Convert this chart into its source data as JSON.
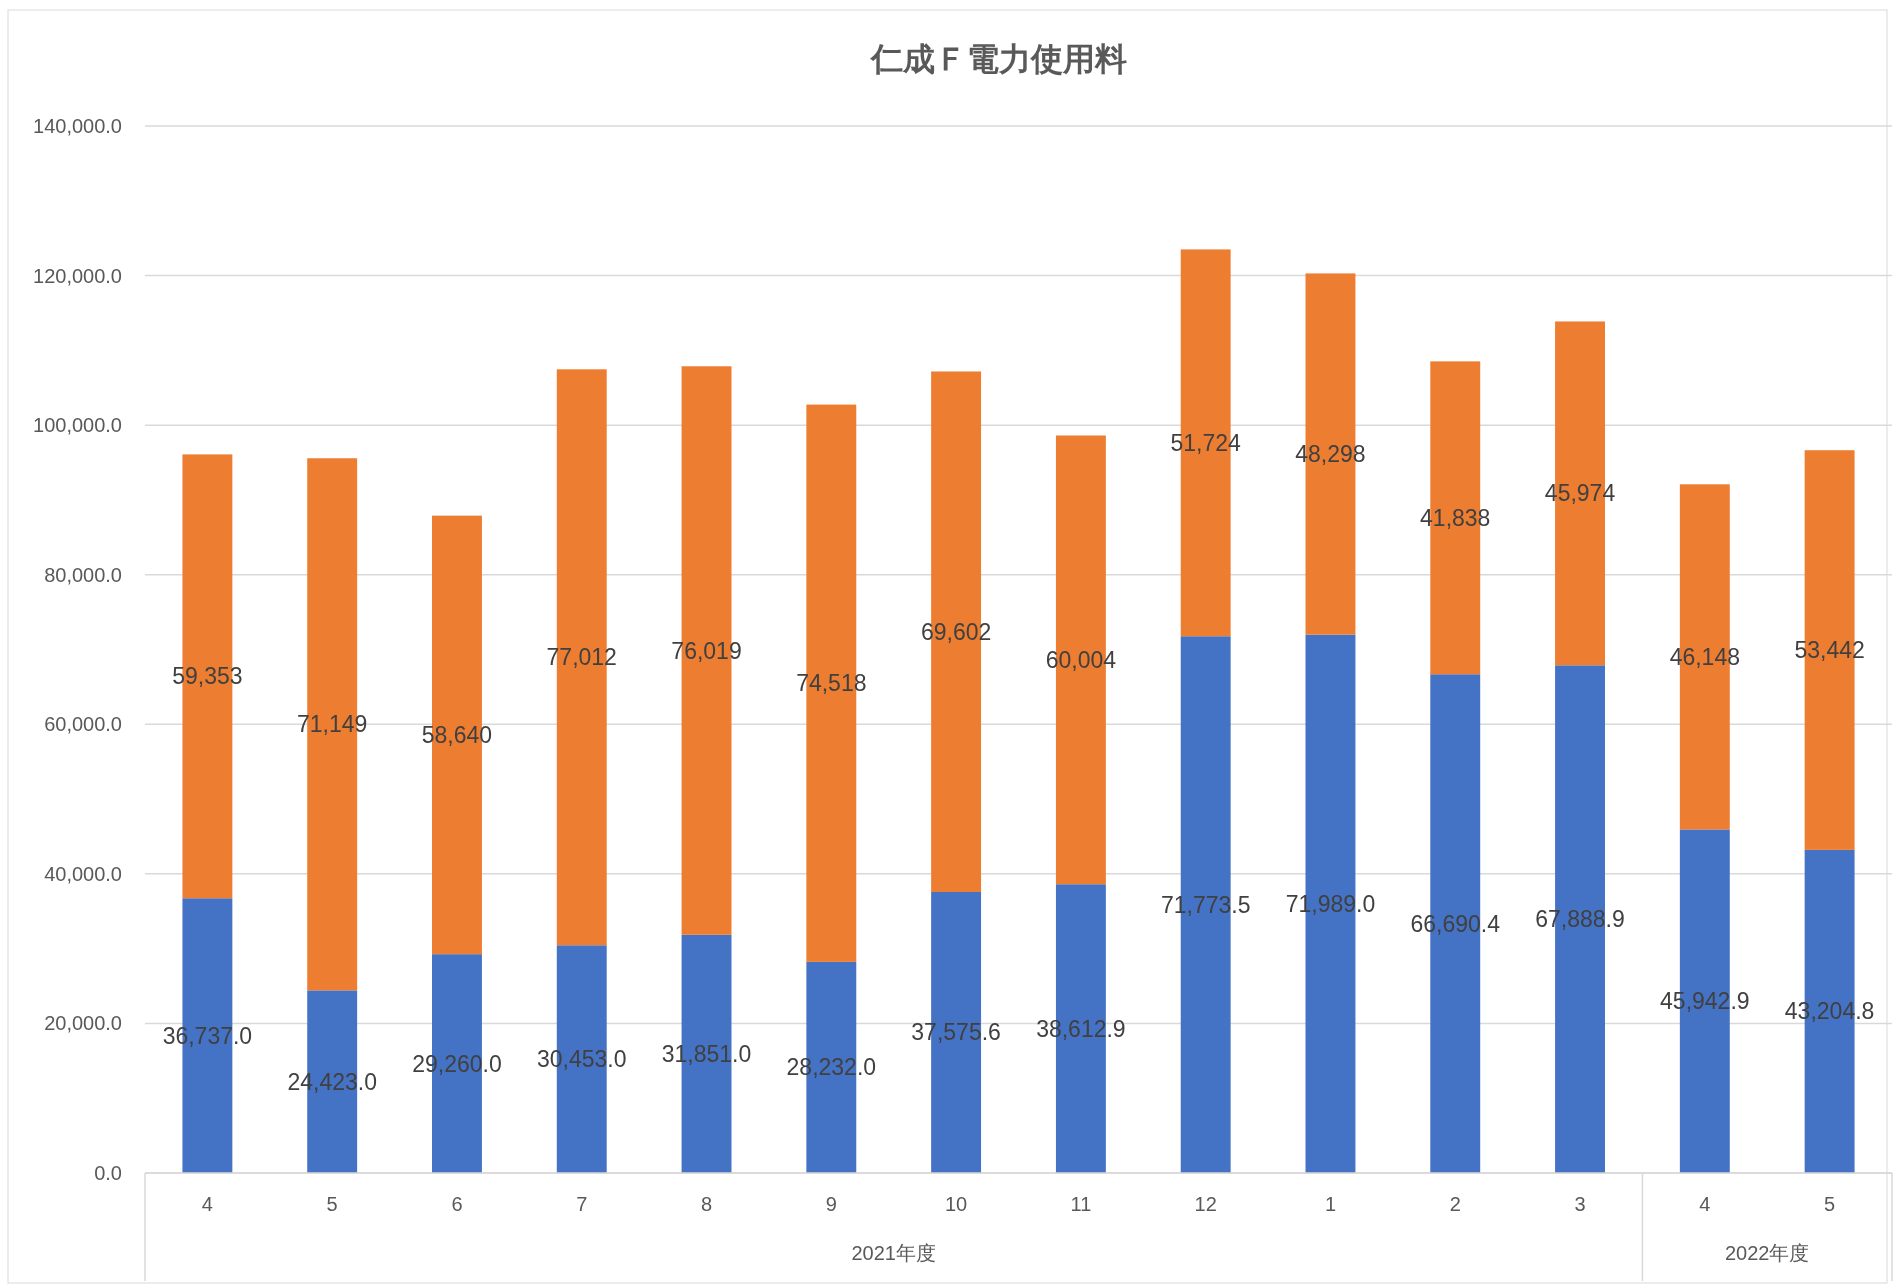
{
  "chart_data": {
    "type": "bar",
    "title": "仁成Ｆ電力使用料",
    "stacked": true,
    "grid": "y",
    "categories": [
      "4",
      "5",
      "6",
      "7",
      "8",
      "9",
      "10",
      "11",
      "12",
      "1",
      "2",
      "3",
      "4",
      "5"
    ],
    "annotations": [
      "2021年度",
      "2022年度"
    ],
    "ylim": [
      0,
      140000
    ],
    "yticks": [
      {
        "value": 0,
        "label": "0.0"
      },
      {
        "value": 20000,
        "label": "20,000.0"
      },
      {
        "value": 40000,
        "label": "40,000.0"
      },
      {
        "value": 60000,
        "label": "60,000.0"
      },
      {
        "value": 80000,
        "label": "80,000.0"
      },
      {
        "value": 100000,
        "label": "100,000.0"
      },
      {
        "value": 120000,
        "label": "120,000.0"
      },
      {
        "value": 140000,
        "label": "140,000.0"
      }
    ],
    "series": [
      {
        "color": "#4472c4",
        "values": [
          36737.0,
          24423.0,
          29260.0,
          30453.0,
          31851.0,
          28232.0,
          37575.6,
          38612.9,
          71773.5,
          71989.0,
          66690.4,
          67888.9,
          45942.9,
          43204.8
        ],
        "value_labels": [
          "36,737.0",
          "24,423.0",
          "29,260.0",
          "30,453.0",
          "31,851.0",
          "28,232.0",
          "37,575.6",
          "38,612.9",
          "71,773.5",
          "71,989.0",
          "66,690.4",
          "67,888.9",
          "45,942.9",
          "43,204.8"
        ]
      },
      {
        "color": "#ed7d31",
        "values": [
          59353,
          71149,
          58640,
          77012,
          76019,
          74518,
          69602,
          60004,
          51724,
          48298,
          41838,
          45974,
          46148,
          53442
        ],
        "value_labels": [
          "59,353",
          "71,149",
          "58,640",
          "77,012",
          "76,019",
          "74,518",
          "69,602",
          "60,004",
          "51,724",
          "48,298",
          "41,838",
          "45,974",
          "46,148",
          "53,442"
        ]
      }
    ]
  }
}
